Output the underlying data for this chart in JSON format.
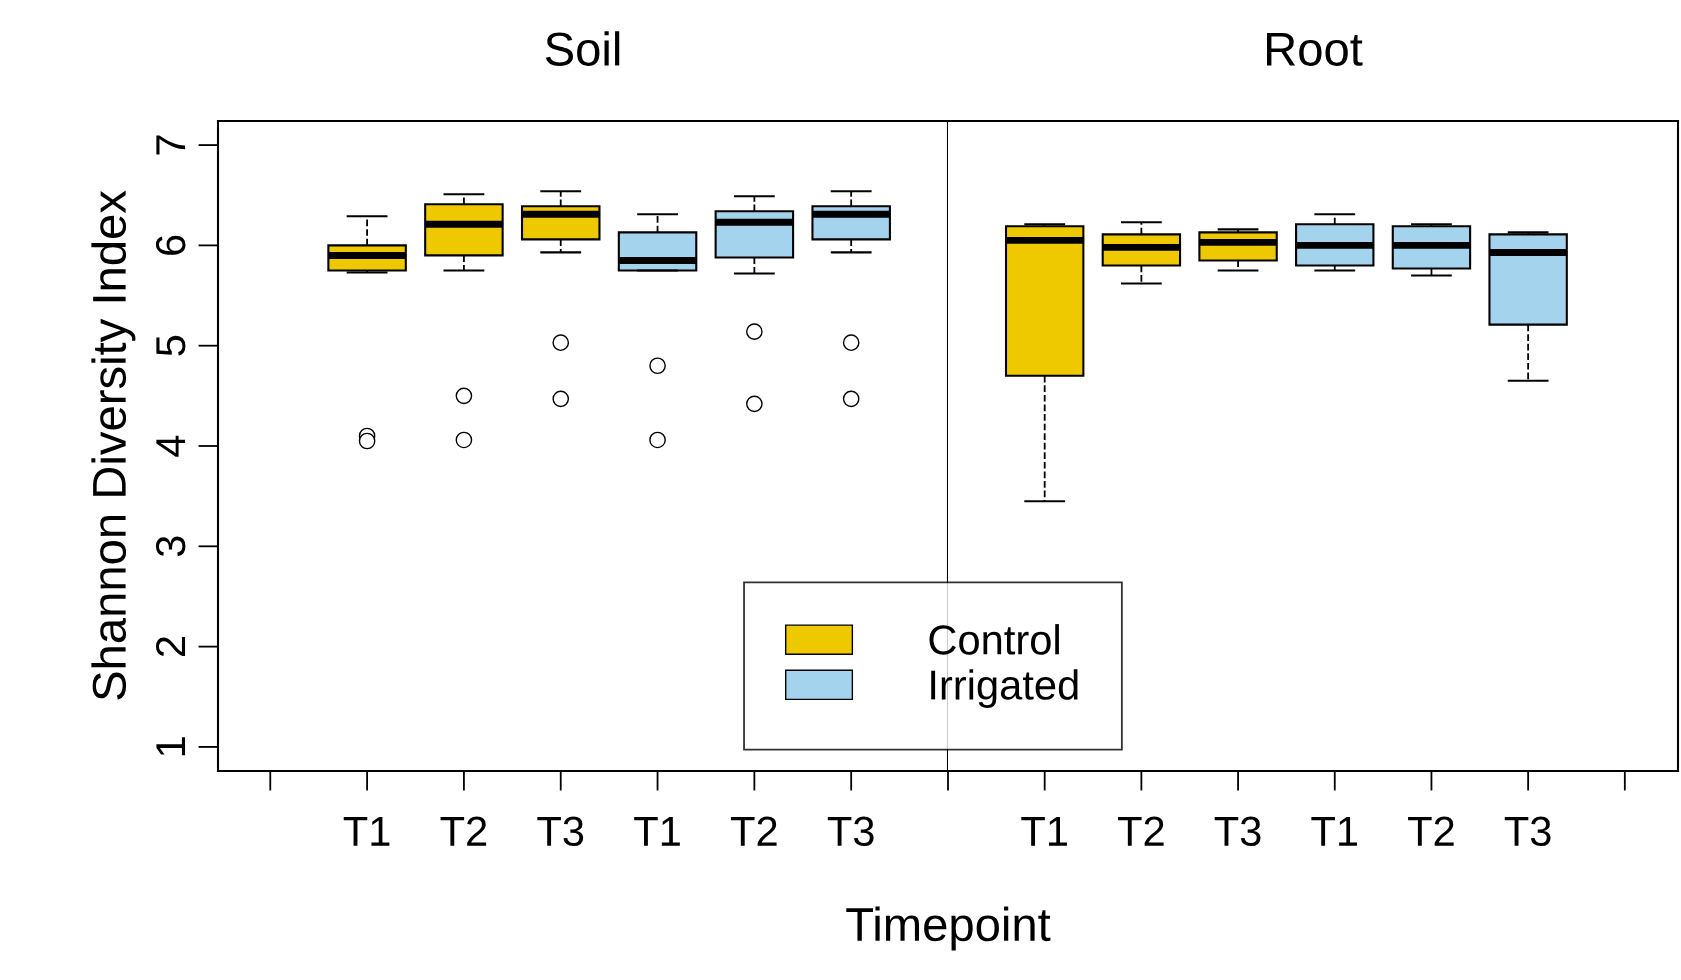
{
  "chart_data": [
    {
      "type": "box",
      "title": "Soil",
      "xlabel": "Timepoint",
      "ylabel": "Shannon Diversity Index",
      "categories": [
        null,
        "T1",
        "T2",
        "T3",
        "T1",
        "T2",
        "T3",
        null
      ],
      "ylim": [
        0.76,
        7.24
      ],
      "yticks": [
        1,
        2,
        3,
        4,
        5,
        6,
        7
      ],
      "legend": "bottom",
      "grid": false,
      "series": [
        {
          "name": "Control",
          "color": "#eec900",
          "boxes": [
            null,
            {
              "low": 5.73,
              "q1": 5.75,
              "median": 5.9,
              "q3": 6.0,
              "high": 6.29,
              "outliers": [
                4.1,
                4.05
              ]
            },
            {
              "low": 5.75,
              "q1": 5.9,
              "median": 6.21,
              "q3": 6.41,
              "high": 6.51,
              "outliers": [
                4.5,
                4.06
              ]
            },
            {
              "low": 5.93,
              "q1": 6.06,
              "median": 6.31,
              "q3": 6.39,
              "high": 6.54,
              "outliers": [
                5.03,
                4.47
              ]
            },
            null,
            null,
            null,
            null
          ]
        },
        {
          "name": "Irrigated",
          "color": "#a4d3ee",
          "boxes": [
            null,
            null,
            null,
            null,
            {
              "low": 5.75,
              "q1": 5.75,
              "median": 5.85,
              "q3": 6.13,
              "high": 6.31,
              "outliers": [
                4.8,
                4.06
              ]
            },
            {
              "low": 5.72,
              "q1": 5.88,
              "median": 6.23,
              "q3": 6.34,
              "high": 6.49,
              "outliers": [
                5.14,
                4.42
              ]
            },
            {
              "low": 5.93,
              "q1": 6.06,
              "median": 6.31,
              "q3": 6.39,
              "high": 6.54,
              "outliers": [
                5.03,
                4.47
              ]
            },
            null
          ]
        }
      ]
    },
    {
      "type": "box",
      "title": "Root",
      "categories": [
        "T1",
        "T2",
        "T3",
        "T1",
        "T2",
        "T3",
        null
      ],
      "ylim": [
        0.76,
        7.24
      ],
      "tick_labels": "x",
      "grid": false,
      "series": [
        {
          "color": "#eec900",
          "boxes": [
            {
              "low": 3.45,
              "q1": 4.7,
              "median": 6.05,
              "q3": 6.19,
              "high": 6.21
            },
            {
              "low": 5.62,
              "q1": 5.8,
              "median": 5.98,
              "q3": 6.11,
              "high": 6.23
            },
            {
              "low": 5.75,
              "q1": 5.85,
              "median": 6.03,
              "q3": 6.13,
              "high": 6.16
            },
            null,
            null,
            null,
            null
          ]
        },
        {
          "color": "#a4d3ee",
          "boxes": [
            null,
            null,
            null,
            {
              "low": 5.75,
              "q1": 5.8,
              "median": 6.0,
              "q3": 6.21,
              "high": 6.31
            },
            {
              "low": 5.7,
              "q1": 5.77,
              "median": 6.0,
              "q3": 6.19,
              "high": 6.21
            },
            {
              "low": 4.65,
              "q1": 5.21,
              "median": 5.93,
              "q3": 6.11,
              "high": 6.13
            },
            null
          ]
        }
      ]
    }
  ]
}
